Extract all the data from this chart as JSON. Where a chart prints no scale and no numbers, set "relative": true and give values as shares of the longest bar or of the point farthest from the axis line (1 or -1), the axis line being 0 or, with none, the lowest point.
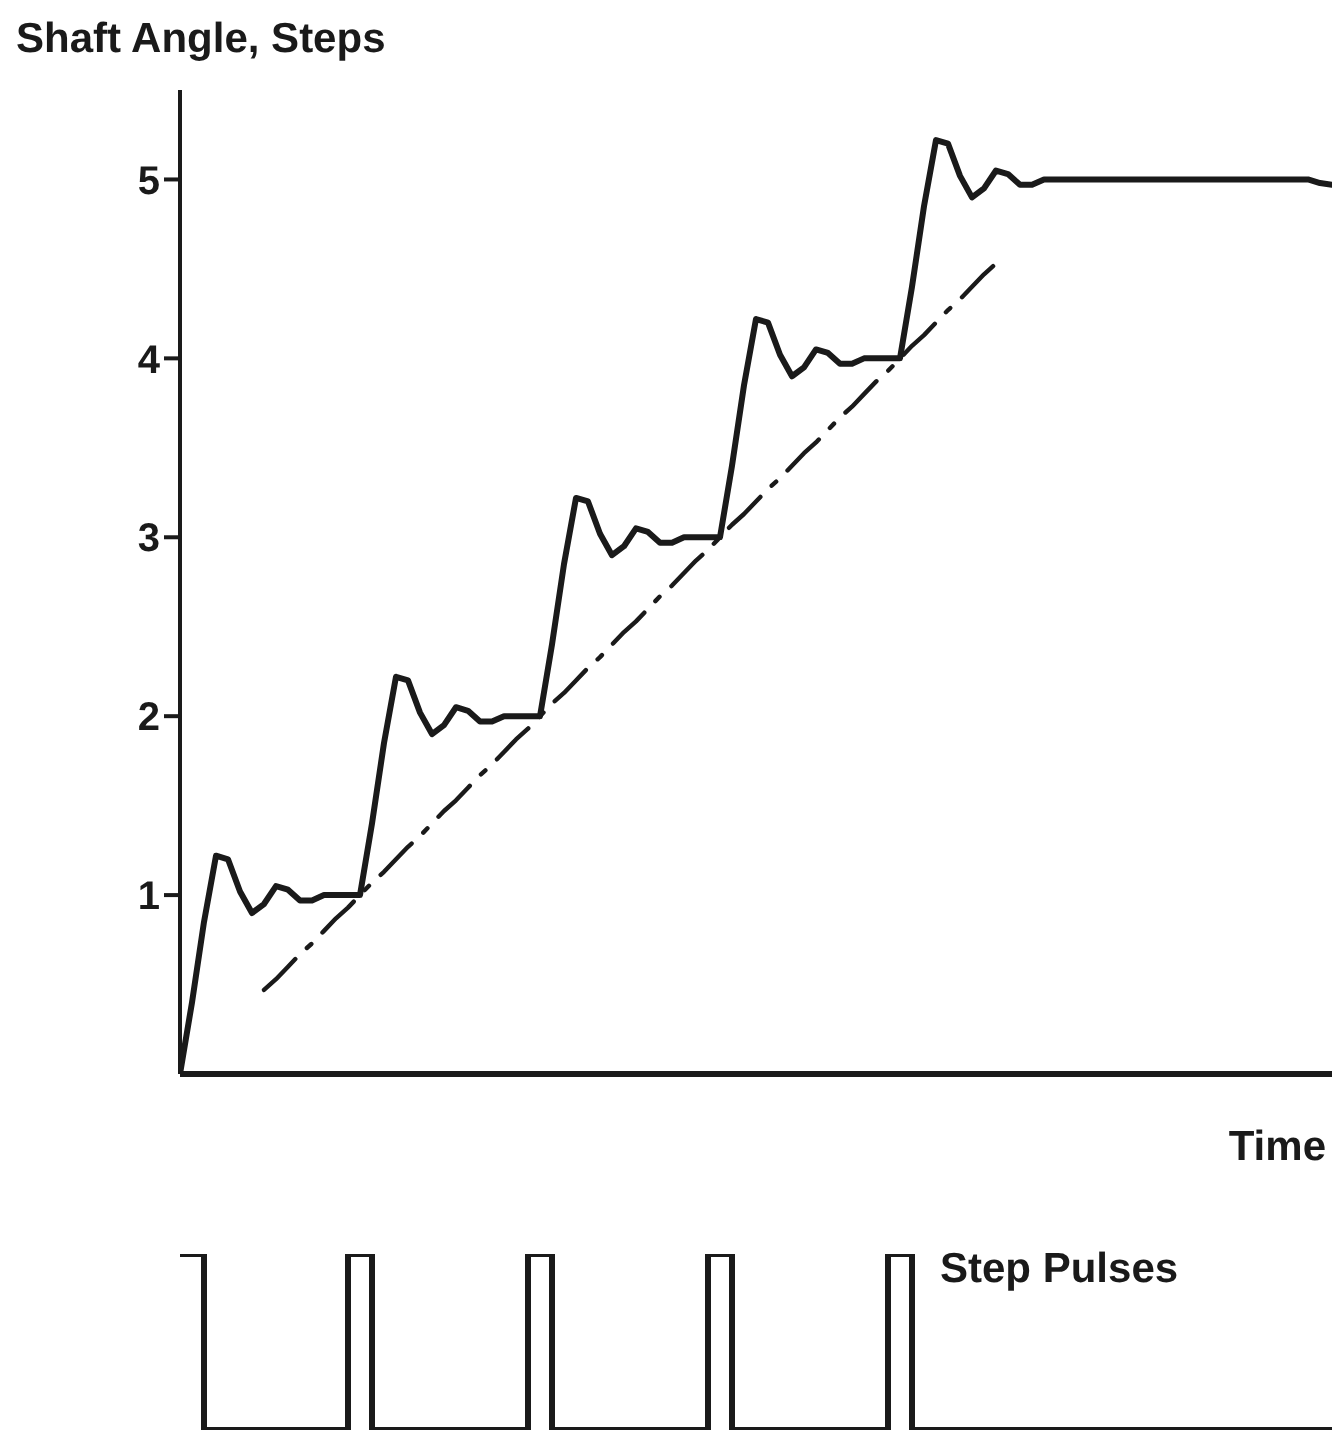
{
  "chart_data": [
    {
      "type": "line",
      "ylabel": "Shaft Angle, Steps",
      "xlabel": "Time",
      "ylim": [
        0,
        5.5
      ],
      "yticks": [
        1,
        2,
        3,
        4,
        5
      ],
      "tick_labels": "y",
      "grid": false,
      "legend": false,
      "marker": "none",
      "categories": [
        null,
        null,
        null,
        null,
        null,
        null,
        null,
        null,
        null,
        null,
        null,
        null,
        null,
        null,
        null,
        null,
        null,
        null,
        null,
        null,
        null,
        null,
        null,
        null,
        null,
        null,
        null,
        null,
        null,
        null,
        null,
        null,
        null,
        null,
        null,
        null,
        null,
        null,
        null,
        null,
        null,
        null,
        null,
        null,
        null,
        null,
        null,
        null,
        null,
        null,
        null,
        null,
        null,
        null,
        null,
        null,
        null,
        null,
        null,
        null,
        null,
        null,
        null,
        null,
        null,
        null,
        null,
        null,
        null,
        null,
        null,
        null,
        null,
        null,
        null,
        null,
        null,
        null,
        null,
        null,
        null,
        null,
        null,
        null,
        null,
        null,
        null,
        null,
        null,
        null,
        null,
        null,
        null,
        null,
        null,
        null,
        null
      ],
      "series": [
        {
          "color": "#1a1a1a",
          "line_style": "solid",
          "values": [
            0,
            0.4,
            0.85,
            1.22,
            1.2,
            1.02,
            0.9,
            0.95,
            1.05,
            1.03,
            0.97,
            0.97,
            1,
            1,
            1,
            1,
            1.4,
            1.85,
            2.22,
            2.2,
            2.02,
            1.9,
            1.95,
            2.05,
            2.03,
            1.97,
            1.97,
            2,
            2,
            2,
            2,
            2.4,
            2.85,
            3.22,
            3.2,
            3.02,
            2.9,
            2.95,
            3.05,
            3.03,
            2.97,
            2.97,
            3,
            3,
            3,
            3,
            3.4,
            3.85,
            4.22,
            4.2,
            4.02,
            3.9,
            3.95,
            4.05,
            4.03,
            3.97,
            3.97,
            4,
            4,
            4,
            4,
            4.4,
            4.85,
            5.22,
            5.2,
            5.02,
            4.9,
            4.95,
            5.05,
            5.03,
            4.97,
            4.97,
            5,
            5,
            5,
            5,
            5,
            5,
            5,
            5,
            5,
            5,
            5,
            5,
            5,
            5,
            5,
            5,
            5,
            5,
            5,
            5,
            5,
            5,
            5,
            4.98,
            4.97
          ]
        },
        {
          "color": "#1a1a1a",
          "line_style": "dashed",
          "values": [
            null,
            null,
            null,
            null,
            null,
            null,
            null,
            0.47,
            0.53,
            0.6,
            0.67,
            0.73,
            0.8,
            0.87,
            0.93,
            1,
            1.07,
            1.13,
            1.2,
            1.27,
            1.33,
            1.4,
            1.47,
            1.53,
            1.6,
            1.67,
            1.73,
            1.8,
            1.87,
            1.93,
            2,
            2.07,
            2.13,
            2.2,
            2.27,
            2.33,
            2.4,
            2.47,
            2.53,
            2.6,
            2.67,
            2.73,
            2.8,
            2.87,
            2.93,
            3,
            3.07,
            3.13,
            3.2,
            3.27,
            3.33,
            3.4,
            3.47,
            3.53,
            3.6,
            3.67,
            3.73,
            3.8,
            3.87,
            3.93,
            4,
            4.07,
            4.13,
            4.2,
            4.27,
            4.33,
            4.4,
            4.47,
            4.53,
            null,
            null,
            null,
            null,
            null,
            null,
            null,
            null,
            null,
            null,
            null,
            null,
            null,
            null,
            null,
            null,
            null,
            null,
            null,
            null,
            null,
            null,
            null,
            null,
            null,
            null,
            null,
            null
          ]
        }
      ]
    },
    {
      "type": "step",
      "relative": true,
      "tick_labels": false,
      "legend": false,
      "marker": "none",
      "categories": [
        null,
        null,
        null,
        null,
        null,
        null,
        null,
        null,
        null,
        null,
        null,
        null,
        null,
        null,
        null,
        null,
        null,
        null,
        null,
        null,
        null,
        null,
        null,
        null,
        null,
        null,
        null,
        null,
        null,
        null,
        null,
        null,
        null,
        null,
        null,
        null,
        null,
        null,
        null,
        null,
        null,
        null,
        null,
        null,
        null,
        null,
        null,
        null,
        null,
        null,
        null,
        null,
        null,
        null,
        null,
        null,
        null,
        null,
        null,
        null,
        null,
        null,
        null,
        null,
        null,
        null,
        null,
        null,
        null,
        null,
        null,
        null,
        null,
        null,
        null,
        null,
        null,
        null,
        null,
        null,
        null,
        null,
        null,
        null,
        null,
        null,
        null,
        null,
        null,
        null,
        null,
        null,
        null,
        null,
        null,
        null,
        null
      ],
      "series": [
        {
          "name": "Step Pulses",
          "color": "#1a1a1a",
          "line_style": "solid",
          "values": [
            1,
            1,
            0,
            0,
            0,
            0,
            0,
            0,
            0,
            0,
            0,
            0,
            0,
            0,
            1,
            1,
            0,
            0,
            0,
            0,
            0,
            0,
            0,
            0,
            0,
            0,
            0,
            0,
            0,
            1,
            1,
            0,
            0,
            0,
            0,
            0,
            0,
            0,
            0,
            0,
            0,
            0,
            0,
            0,
            1,
            1,
            0,
            0,
            0,
            0,
            0,
            0,
            0,
            0,
            0,
            0,
            0,
            0,
            0,
            1,
            1,
            0,
            0,
            0,
            0,
            0,
            0,
            0,
            0,
            0,
            0,
            0,
            0,
            0,
            0,
            0,
            0,
            0,
            0,
            0,
            0,
            0,
            0,
            0,
            0,
            0,
            0,
            0,
            0,
            0,
            0,
            0,
            0,
            0,
            0,
            0,
            0
          ]
        }
      ]
    }
  ]
}
